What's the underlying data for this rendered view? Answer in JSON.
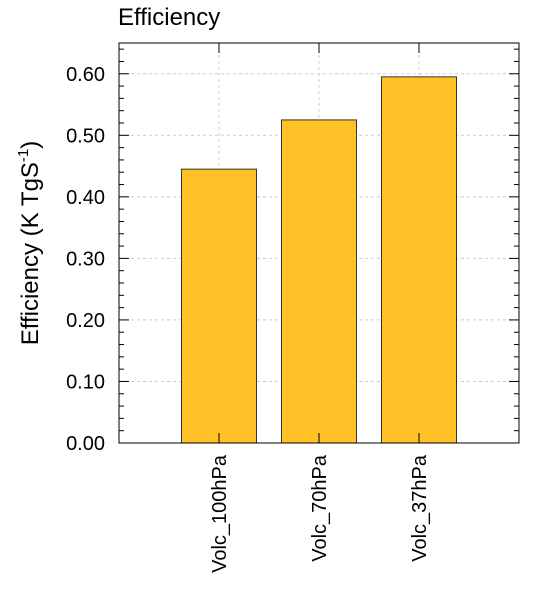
{
  "chart_data": {
    "type": "bar",
    "title": "Efficiency",
    "ylabel_parts": [
      "Efficiency (K TgS",
      "-1",
      ")"
    ],
    "categories": [
      "Volc_100hPa",
      "Volc_70hPa",
      "Volc_37hPa"
    ],
    "values": [
      0.445,
      0.525,
      0.595
    ],
    "color": "#ffc125",
    "ylim": [
      0,
      0.65
    ],
    "yticks": [
      {
        "value": 0,
        "label": "0.00"
      },
      {
        "value": 0.1,
        "label": "0.10"
      },
      {
        "value": 0.2,
        "label": "0.20"
      },
      {
        "value": 0.3,
        "label": "0.30"
      },
      {
        "value": 0.4,
        "label": "0.40"
      },
      {
        "value": 0.5,
        "label": "0.50"
      },
      {
        "value": 0.6,
        "label": "0.60"
      }
    ],
    "grid": true
  }
}
